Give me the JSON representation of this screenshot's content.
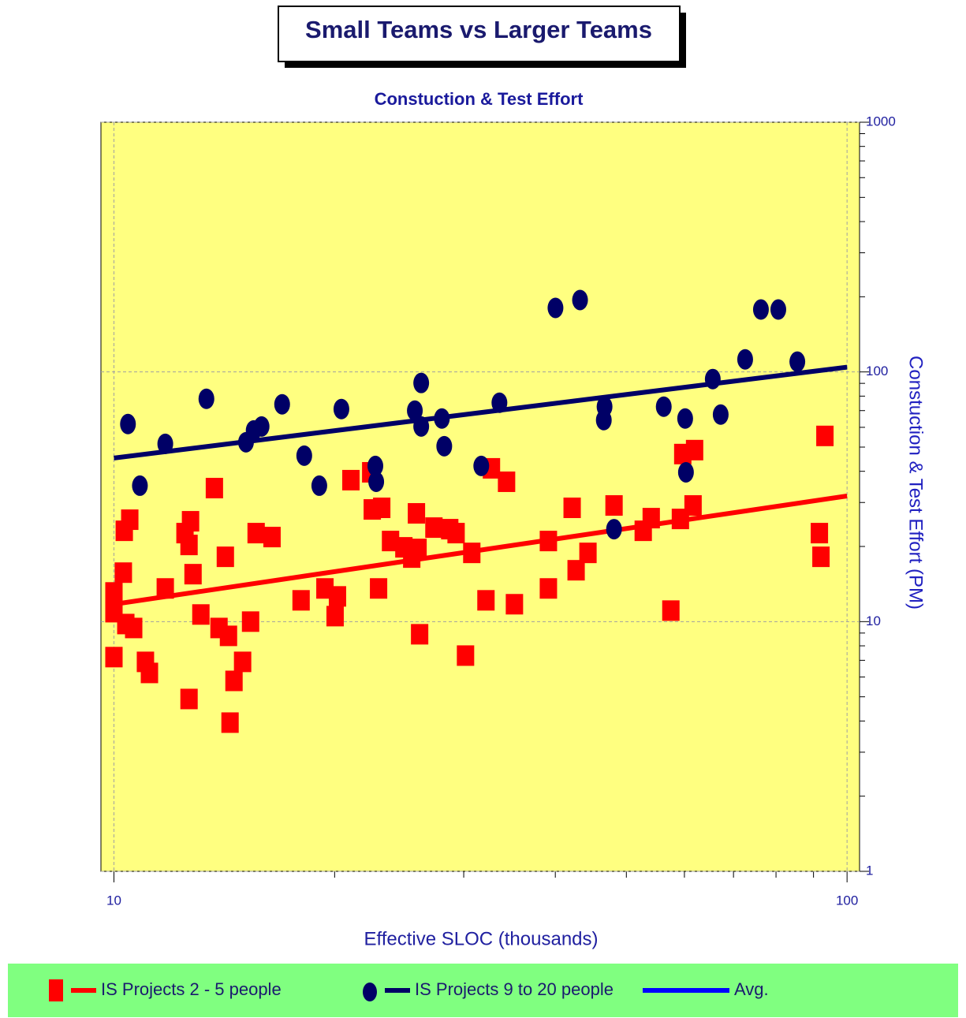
{
  "chart_data": {
    "type": "scatter",
    "title": "Small Teams vs Larger Teams",
    "subtitle": "Constuction & Test Effort",
    "x_label": "Effective SLOC (thousands)",
    "y_label": "Constuction & Test Effort (PM)",
    "x_log": true,
    "y_log": true,
    "xlim": [
      9.6,
      104
    ],
    "ylim": [
      1,
      1000
    ],
    "xticks": [
      10,
      100
    ],
    "yticks": [
      1,
      10,
      100,
      1000
    ],
    "x_minor_ticks": [
      20,
      30,
      40,
      50,
      60,
      70,
      80,
      90
    ],
    "y_minor_ticks": [
      2,
      3,
      4,
      5,
      6,
      7,
      8,
      9,
      20,
      30,
      40,
      50,
      60,
      70,
      80,
      90,
      200,
      300,
      400,
      500,
      600,
      700,
      800,
      900
    ],
    "grid": true,
    "plot_background": "#ffff80",
    "legend_background": "#80ff80",
    "series": [
      {
        "name": "IS Projects 2 - 5 people",
        "color": "#ff0000",
        "marker": "square",
        "x": [
          10.0,
          10.0,
          10.0,
          10.3,
          10.33,
          10.51,
          10.38,
          10.64,
          11.04,
          11.18,
          11.75,
          12.5,
          12.66,
          12.66,
          12.72,
          12.82,
          13.14,
          13.71,
          13.91,
          14.19,
          14.33,
          14.58,
          14.4,
          14.98,
          15.36,
          15.63,
          16.43,
          18.0,
          19.4,
          20.03,
          20.18,
          21.05,
          22.4,
          22.51,
          23.19,
          22.96,
          23.84,
          24.86,
          25.48,
          25.86,
          25.99,
          26.12,
          27.32,
          28.71,
          29.29,
          30.17,
          30.77,
          32.17,
          32.73,
          34.32,
          35.18,
          39.14,
          39.14,
          42.17,
          42.7,
          44.32,
          48.1,
          52.72,
          54.06,
          57.5,
          59.25,
          59.69,
          61.95,
          61.65,
          91.68,
          92.13,
          93.28
        ],
        "y": [
          13.09,
          10.91,
          7.21,
          15.71,
          23.11,
          25.6,
          9.78,
          9.43,
          6.9,
          6.23,
          13.58,
          22.62,
          20.28,
          4.9,
          25.23,
          15.49,
          10.68,
          34.26,
          9.43,
          18.18,
          8.77,
          5.79,
          3.94,
          6.9,
          10.0,
          22.62,
          21.81,
          12.17,
          13.58,
          10.52,
          12.62,
          36.86,
          39.63,
          28.14,
          28.56,
          13.58,
          21.03,
          19.84,
          18.05,
          27.14,
          19.55,
          8.9,
          23.8,
          23.46,
          22.62,
          7.31,
          18.85,
          12.17,
          41.11,
          36.32,
          11.74,
          21.03,
          13.58,
          28.56,
          16.06,
          18.85,
          29.19,
          23.11,
          25.97,
          11.07,
          25.78,
          46.89,
          48.63,
          29.19,
          22.62,
          18.18,
          55.43
        ],
        "trend": {
          "x": [
            10,
            100
          ],
          "y": [
            11.74,
            31.86
          ]
        }
      },
      {
        "name": "IS Projects 9 to 20  people",
        "color": "#000066",
        "marker": "ellipse",
        "x": [
          10.45,
          10.85,
          11.75,
          13.37,
          15.14,
          15.51,
          15.9,
          16.96,
          18.18,
          19.06,
          20.43,
          22.73,
          22.79,
          25.73,
          26.25,
          26.25,
          28.01,
          28.22,
          31.7,
          33.56,
          40.02,
          43.23,
          46.58,
          46.69,
          48.1,
          56.23,
          60.14,
          60.29,
          65.59,
          67.24,
          72.61,
          76.3,
          80.58,
          85.54
        ],
        "y": [
          61.83,
          35.03,
          51.52,
          78.05,
          52.28,
          58.32,
          60.48,
          74.18,
          46.2,
          35.03,
          71.01,
          42.02,
          36.32,
          70.0,
          90.31,
          60.48,
          65.07,
          50.42,
          42.02,
          75.28,
          180.5,
          194.1,
          64.12,
          72.58,
          23.46,
          72.58,
          65.07,
          39.63,
          93.65,
          67.47,
          112.3,
          177.8,
          177.8,
          109.9
        ],
        "trend": {
          "x": [
            10,
            100
          ],
          "y": [
            45.2,
            104.5
          ]
        }
      },
      {
        "name": "Avg.",
        "color": "#0000ff",
        "marker": "none",
        "x": [],
        "y": []
      }
    ]
  }
}
